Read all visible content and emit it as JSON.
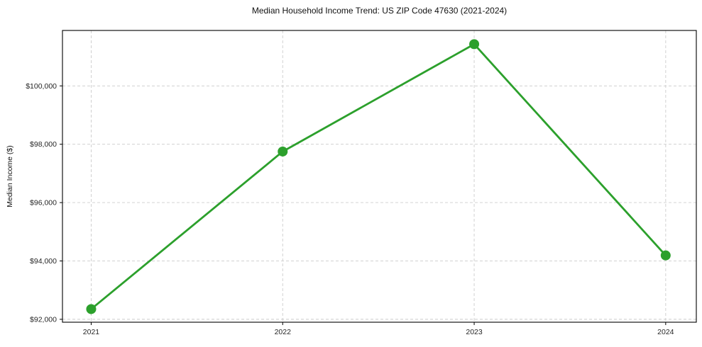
{
  "chart_data": {
    "type": "line",
    "title": "Median Household Income Trend: US ZIP Code 47630 (2021-2024)",
    "xlabel": "",
    "ylabel": "Median Income ($)",
    "x": [
      2021,
      2022,
      2023,
      2024
    ],
    "series": [
      {
        "name": "Median Household Income",
        "color": "#2ca02c",
        "values": [
          92350,
          97750,
          101430,
          94190
        ]
      }
    ],
    "xticks": {
      "values": [
        2021,
        2022,
        2023,
        2024
      ],
      "labels": [
        "2021",
        "2022",
        "2023",
        "2024"
      ]
    },
    "yticks": {
      "values": [
        92000,
        94000,
        96000,
        98000,
        100000
      ],
      "labels": [
        "$92,000",
        "$94,000",
        "$96,000",
        "$98,000",
        "$100,000"
      ]
    },
    "xlim": [
      2020.85,
      2024.16
    ],
    "ylim": [
      91900,
      101900
    ],
    "grid": {
      "visible": true,
      "style": "dashed",
      "color": "#cccccc"
    },
    "legend": {
      "position": "none"
    },
    "marker": {
      "shape": "circle",
      "size": 7
    },
    "line_width": 2.8,
    "spine_color": "#000000",
    "background": "#ffffff"
  }
}
